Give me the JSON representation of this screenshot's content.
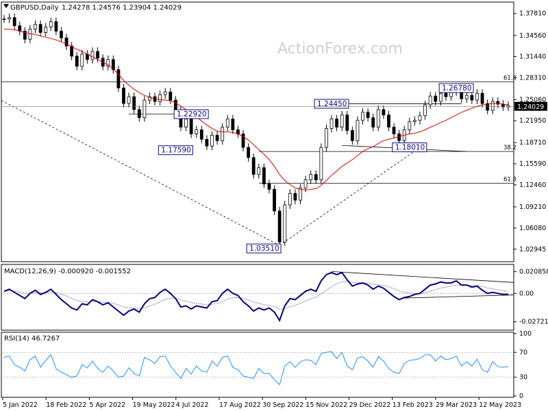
{
  "chart_data": {
    "type": "candlestick",
    "watermark": "ActionForex.com",
    "header": {
      "symbol": "GBPUSD,Daily",
      "ohlc": "1.24278 1.24576 1.23904 1.24029"
    },
    "date_ticks": [
      "5 Jan 2022",
      "18 Feb 2022",
      "5 Apr 2022",
      "19 May 2022",
      "4 Jul 2022",
      "17 Aug 2022",
      "30 Sep 2022",
      "15 Nov 2022",
      "29 Dec 2022",
      "13 Feb 2023",
      "29 Mar 2023",
      "12 May 2023"
    ],
    "price_panel": {
      "ylim": [
        1.012,
        1.394
      ],
      "ticks": [
        "1.37810",
        "1.34560",
        "1.31440",
        "1.28310",
        "1.25060",
        "1.21950",
        "1.18710",
        "1.15590",
        "1.12460",
        "1.09210",
        "1.06080",
        "1.02945"
      ],
      "current_price": "1.24029",
      "closes": [
        1.37,
        1.372,
        1.36,
        1.352,
        1.34,
        1.355,
        1.362,
        1.35,
        1.358,
        1.366,
        1.352,
        1.342,
        1.33,
        1.315,
        1.3,
        1.318,
        1.31,
        1.322,
        1.312,
        1.3,
        1.31,
        1.295,
        1.268,
        1.245,
        1.255,
        1.236,
        1.224,
        1.25,
        1.255,
        1.248,
        1.258,
        1.262,
        1.25,
        1.235,
        1.21,
        1.222,
        1.2,
        1.206,
        1.192,
        1.182,
        1.198,
        1.19,
        1.21,
        1.222,
        1.206,
        1.2,
        1.18,
        1.165,
        1.14,
        1.15,
        1.126,
        1.118,
        1.086,
        1.04,
        1.095,
        1.112,
        1.102,
        1.12,
        1.132,
        1.14,
        1.132,
        1.18,
        1.208,
        1.222,
        1.21,
        1.228,
        1.205,
        1.19,
        1.22,
        1.232,
        1.224,
        1.21,
        1.236,
        1.228,
        1.21,
        1.2,
        1.19,
        1.206,
        1.218,
        1.22,
        1.227,
        1.243,
        1.256,
        1.248,
        1.26,
        1.255,
        1.262,
        1.268,
        1.252,
        1.257,
        1.25,
        1.26,
        1.245,
        1.235,
        1.248,
        1.244,
        1.24,
        1.242
      ],
      "ma_values": [
        1.355,
        1.355,
        1.354,
        1.352,
        1.35,
        1.348,
        1.347,
        1.345,
        1.343,
        1.341,
        1.339,
        1.336,
        1.333,
        1.329,
        1.325,
        1.322,
        1.318,
        1.314,
        1.31,
        1.306,
        1.302,
        1.296,
        1.288,
        1.279,
        1.272,
        1.266,
        1.261,
        1.257,
        1.254,
        1.252,
        1.251,
        1.25,
        1.249,
        1.246,
        1.241,
        1.236,
        1.231,
        1.225,
        1.219,
        1.213,
        1.208,
        1.204,
        1.203,
        1.203,
        1.202,
        1.2,
        1.196,
        1.191,
        1.184,
        1.177,
        1.17,
        1.162,
        1.152,
        1.14,
        1.131,
        1.125,
        1.12,
        1.118,
        1.117,
        1.118,
        1.119,
        1.124,
        1.131,
        1.139,
        1.145,
        1.152,
        1.157,
        1.162,
        1.168,
        1.174,
        1.178,
        1.181,
        1.186,
        1.19,
        1.192,
        1.194,
        1.196,
        1.198,
        1.2,
        1.201,
        1.203,
        1.206,
        1.21,
        1.213,
        1.217,
        1.22,
        1.224,
        1.228,
        1.232,
        1.235,
        1.238,
        1.241,
        1.243,
        1.244,
        1.245,
        1.245,
        1.244,
        1.243
      ],
      "labels": [
        {
          "text": "1.22920",
          "price": 1.2292,
          "index": 36
        },
        {
          "text": "1.17590",
          "price": 1.1759,
          "index": 33
        },
        {
          "text": "1.03510",
          "price": 1.0351,
          "index": 53
        },
        {
          "text": "1.24450",
          "price": 1.2445,
          "index": 63
        },
        {
          "text": "1.18010",
          "price": 1.1801,
          "index": 78
        },
        {
          "text": "1.26780",
          "price": 1.2678,
          "index": 87
        }
      ],
      "fib_levels": [
        {
          "label": "61.8",
          "price": 1.277
        },
        {
          "label": "38.2",
          "price": 1.174
        },
        {
          "label": "61.8",
          "price": 1.127
        }
      ]
    },
    "macd_panel": {
      "title": "MACD(12,26,9) -0.000920 -0.001552",
      "ylim": [
        -0.034,
        0.0265
      ],
      "ticks": [
        "0.020858",
        "0.00",
        "-0.027213"
      ],
      "values": [
        0.002,
        0.004,
        0.001,
        -0.002,
        -0.005,
        0.0,
        0.003,
        -0.001,
        0.001,
        0.004,
        -0.001,
        -0.006,
        -0.01,
        -0.014,
        -0.016,
        -0.01,
        -0.011,
        -0.006,
        -0.008,
        -0.011,
        -0.009,
        -0.013,
        -0.017,
        -0.021,
        -0.017,
        -0.015,
        -0.018,
        -0.01,
        -0.005,
        -0.004,
        0.001,
        0.004,
        0.0,
        -0.005,
        -0.013,
        -0.012,
        -0.015,
        -0.012,
        -0.013,
        -0.014,
        -0.008,
        -0.007,
        0.0,
        0.004,
        0.0,
        -0.002,
        -0.008,
        -0.012,
        -0.017,
        -0.014,
        -0.016,
        -0.014,
        -0.018,
        -0.026,
        -0.012,
        -0.005,
        -0.006,
        -0.002,
        0.002,
        0.004,
        0.002,
        0.012,
        0.018,
        0.02,
        0.018,
        0.02,
        0.013,
        0.007,
        0.009,
        0.01,
        0.008,
        0.004,
        0.007,
        0.005,
        0.001,
        -0.003,
        -0.006,
        -0.004,
        -0.003,
        -0.001,
        0.0,
        0.004,
        0.008,
        0.009,
        0.011,
        0.01,
        0.01,
        0.012,
        0.008,
        0.008,
        0.006,
        0.007,
        0.003,
        0.0,
        0.001,
        0.0,
        -0.001,
        -0.001
      ]
    },
    "rsi_panel": {
      "title": "RSI(14) 46.7267",
      "ylim": [
        0,
        100
      ],
      "ticks": [
        "100",
        "70",
        "30",
        "0"
      ],
      "values": [
        62,
        64,
        50,
        46,
        40,
        58,
        64,
        46,
        57,
        66,
        44,
        38,
        34,
        30,
        32,
        50,
        45,
        56,
        44,
        38,
        48,
        40,
        30,
        32,
        45,
        36,
        32,
        62,
        58,
        52,
        63,
        64,
        48,
        38,
        28,
        44,
        35,
        48,
        40,
        38,
        56,
        48,
        62,
        64,
        46,
        42,
        32,
        30,
        28,
        44,
        36,
        36,
        26,
        18,
        48,
        55,
        46,
        55,
        58,
        57,
        50,
        68,
        70,
        71,
        60,
        70,
        48,
        42,
        61,
        63,
        56,
        46,
        63,
        56,
        44,
        38,
        36,
        52,
        57,
        58,
        60,
        66,
        66,
        56,
        64,
        58,
        60,
        64,
        48,
        55,
        48,
        59,
        42,
        38,
        55,
        47,
        46,
        47
      ]
    }
  }
}
